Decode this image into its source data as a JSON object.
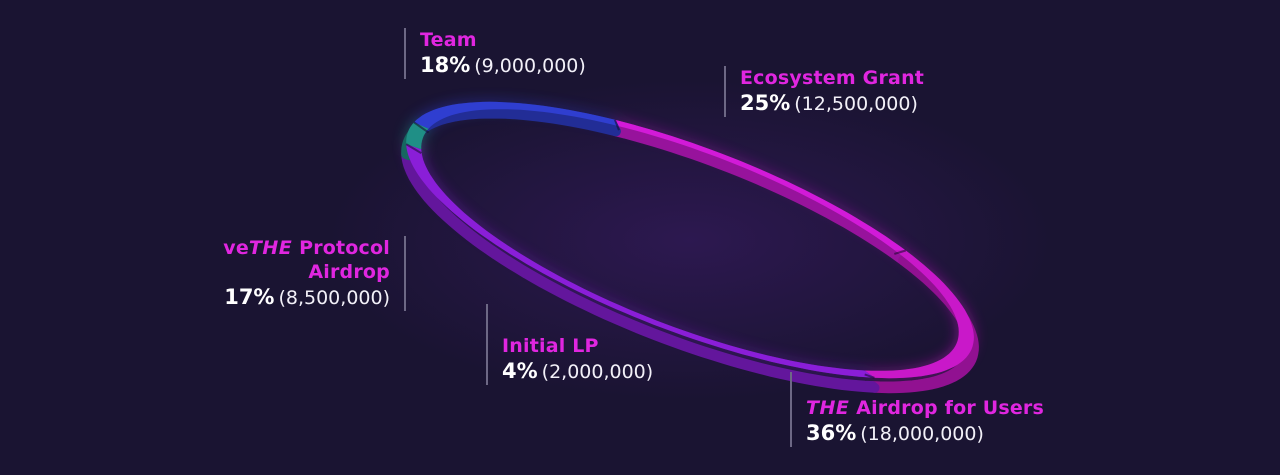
{
  "chart_data": {
    "type": "pie",
    "slices": [
      {
        "label": "Team",
        "percent": 18,
        "amount": "9,000,000",
        "color": "#d21ad8"
      },
      {
        "label": "Ecosystem Grant",
        "percent": 25,
        "amount": "12,500,000",
        "color": "#c918c9"
      },
      {
        "label_prefix": "THE",
        "label": "Airdrop for Users",
        "percent": 36,
        "amount": "18,000,000",
        "color": "#8a1ed8"
      },
      {
        "label": "Initial LP",
        "percent": 4,
        "amount": "2,000,000",
        "color": "#1f8f86"
      },
      {
        "label_prefix": "ve",
        "label_brand": "THE",
        "label": "Protocol",
        "label_line2": "Airdrop",
        "percent": 17,
        "amount": "8,500,000",
        "color": "#2f3ed0"
      }
    ]
  },
  "labels": {
    "team": {
      "category": "Team",
      "percent": "18%",
      "amount": "(9,000,000)"
    },
    "ecosystem": {
      "category": "Ecosystem Grant",
      "percent": "25%",
      "amount": "(12,500,000)"
    },
    "airdrop_users": {
      "brand": "THE",
      "category": "Airdrop for Users",
      "percent": "36%",
      "amount": "(18,000,000)"
    },
    "initial_lp": {
      "category": "Initial LP",
      "percent": "4%",
      "amount": "(2,000,000)"
    },
    "vethe": {
      "prefix": "ve",
      "brand": "THE",
      "category": "Protocol",
      "category_line2": "Airdrop",
      "percent": "17%",
      "amount": "(8,500,000)"
    }
  },
  "colors": {
    "background": "#1a1432",
    "label_accent": "#e026e0",
    "leader_line": "#6d6885"
  }
}
